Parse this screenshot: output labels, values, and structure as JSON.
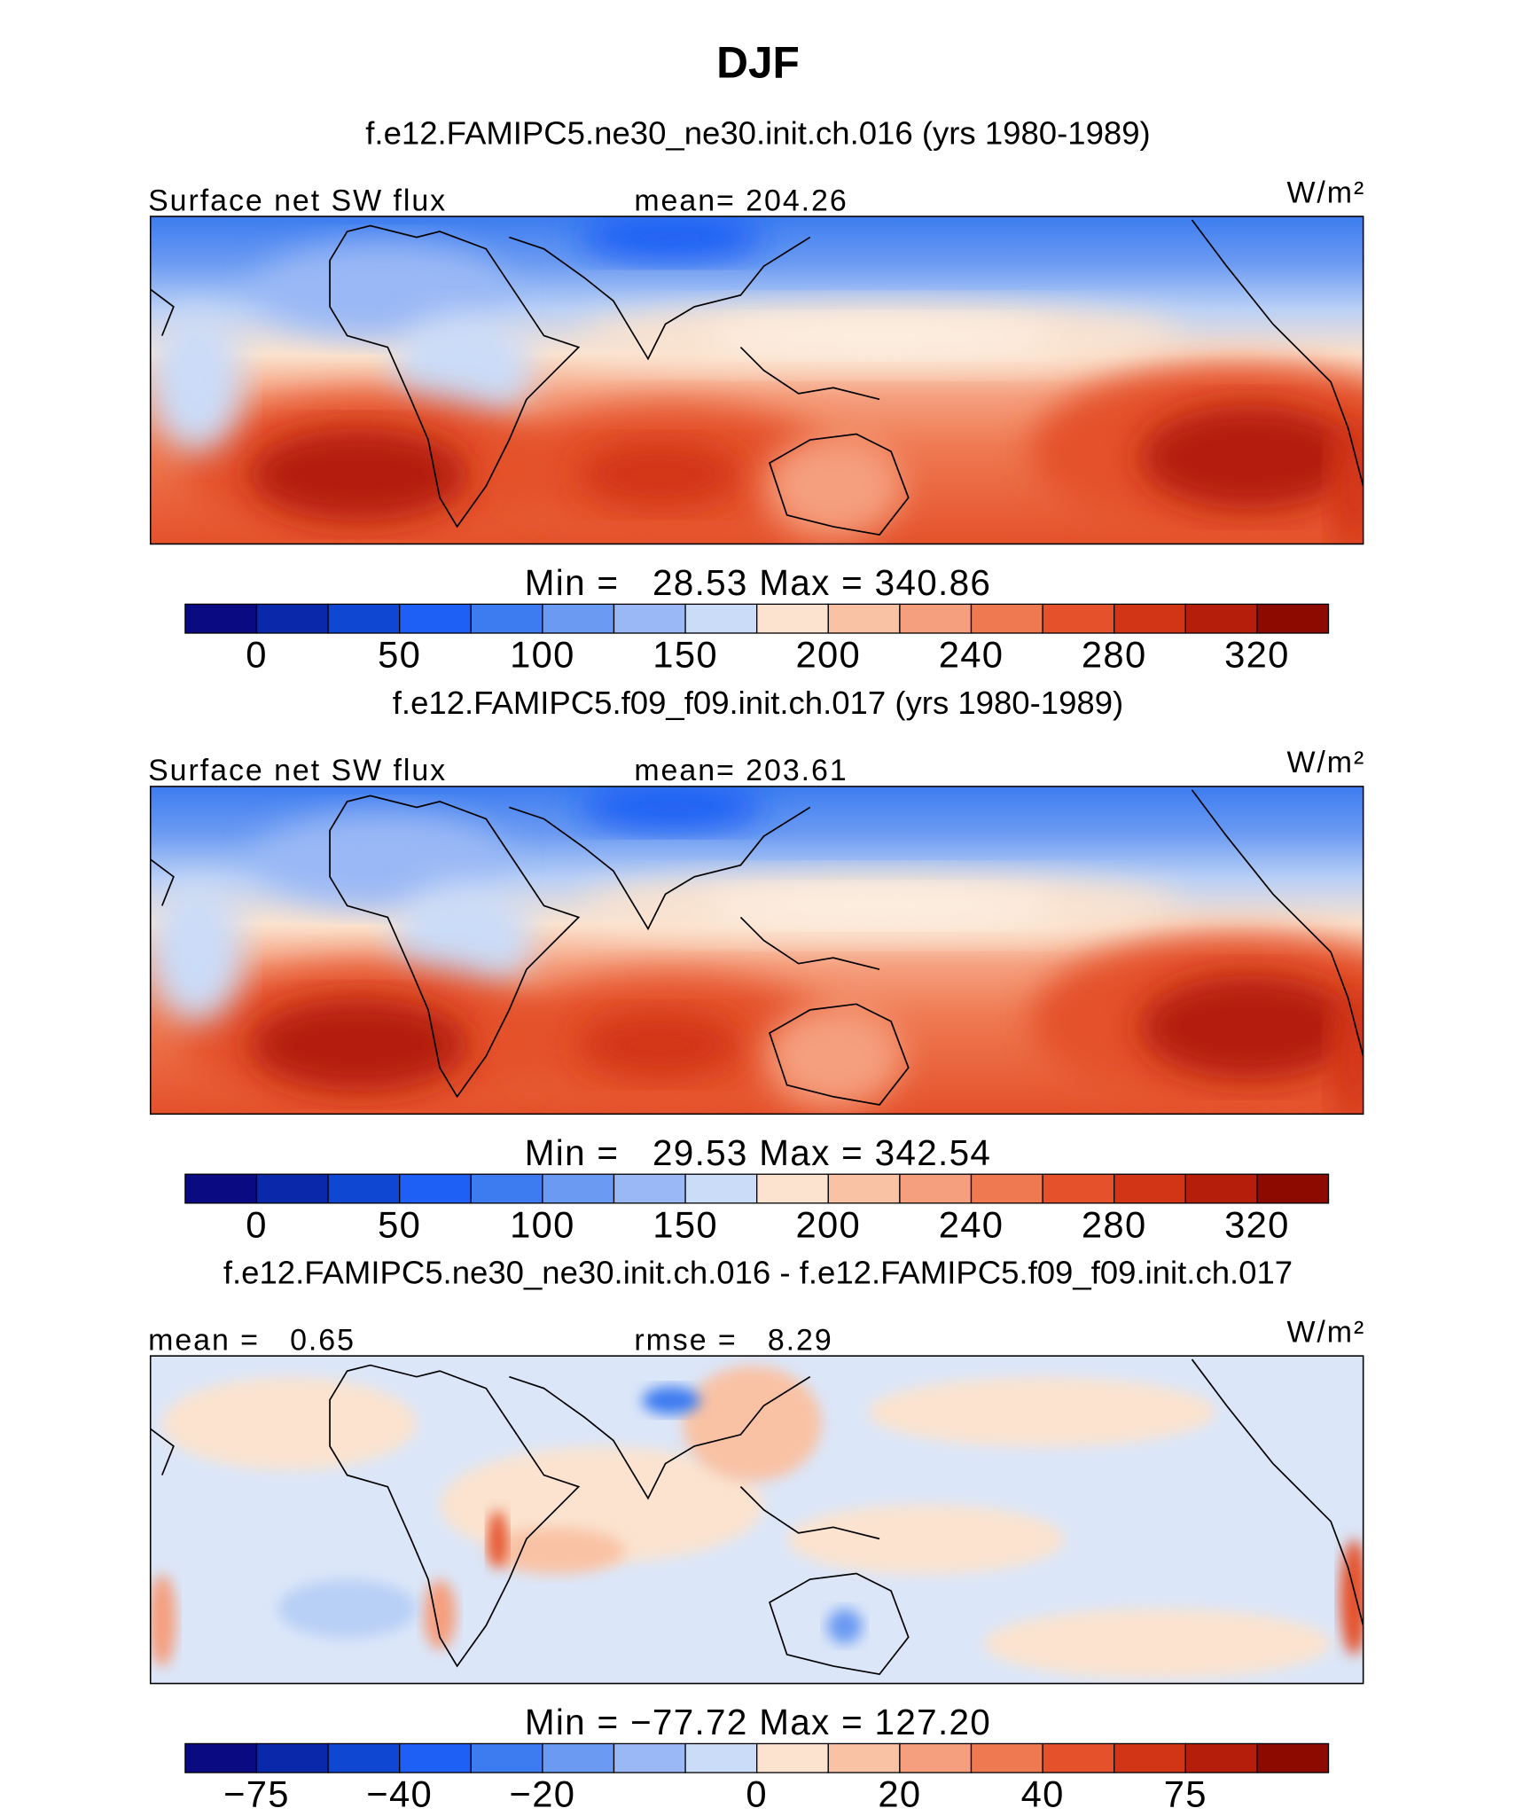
{
  "title": "DJF",
  "colorbar_colors": [
    "#0a0a82",
    "#0a28aa",
    "#0f46d2",
    "#1e5ff5",
    "#3c7cf0",
    "#6a9af2",
    "#9ab8f5",
    "#cbdcf8",
    "#fbe3cf",
    "#f9c2a5",
    "#f59f7e",
    "#ef7a52",
    "#e4512b",
    "#d23416",
    "#b41e0a",
    "#8c0a00"
  ],
  "panels": [
    {
      "subtitle": "f.e12.FAMIPC5.ne30_ne30.init.ch.016 (yrs 1980-1989)",
      "left_label": "Surface net SW flux",
      "center_label": "mean= 204.26",
      "units": "W/m²",
      "min_max": "Min =   28.53 Max = 340.86",
      "colorbar_labels": [
        "0",
        "50",
        "100",
        "150",
        "200",
        "240",
        "280",
        "320"
      ]
    },
    {
      "subtitle": "f.e12.FAMIPC5.f09_f09.init.ch.017 (yrs 1980-1989)",
      "left_label": "Surface net SW flux",
      "center_label": "mean= 203.61",
      "units": "W/m²",
      "min_max": "Min =   29.53 Max = 342.54",
      "colorbar_labels": [
        "0",
        "50",
        "100",
        "150",
        "200",
        "240",
        "280",
        "320"
      ]
    },
    {
      "subtitle": "f.e12.FAMIPC5.ne30_ne30.init.ch.016 - f.e12.FAMIPC5.f09_f09.init.ch.017",
      "left_label": "mean =   0.65",
      "center_label": "rmse =   8.29",
      "units": "W/m²",
      "min_max": "Min = −77.72 Max = 127.20",
      "colorbar_labels": [
        "−75",
        "−40",
        "−20",
        "0",
        "20",
        "40",
        "75"
      ]
    }
  ]
}
